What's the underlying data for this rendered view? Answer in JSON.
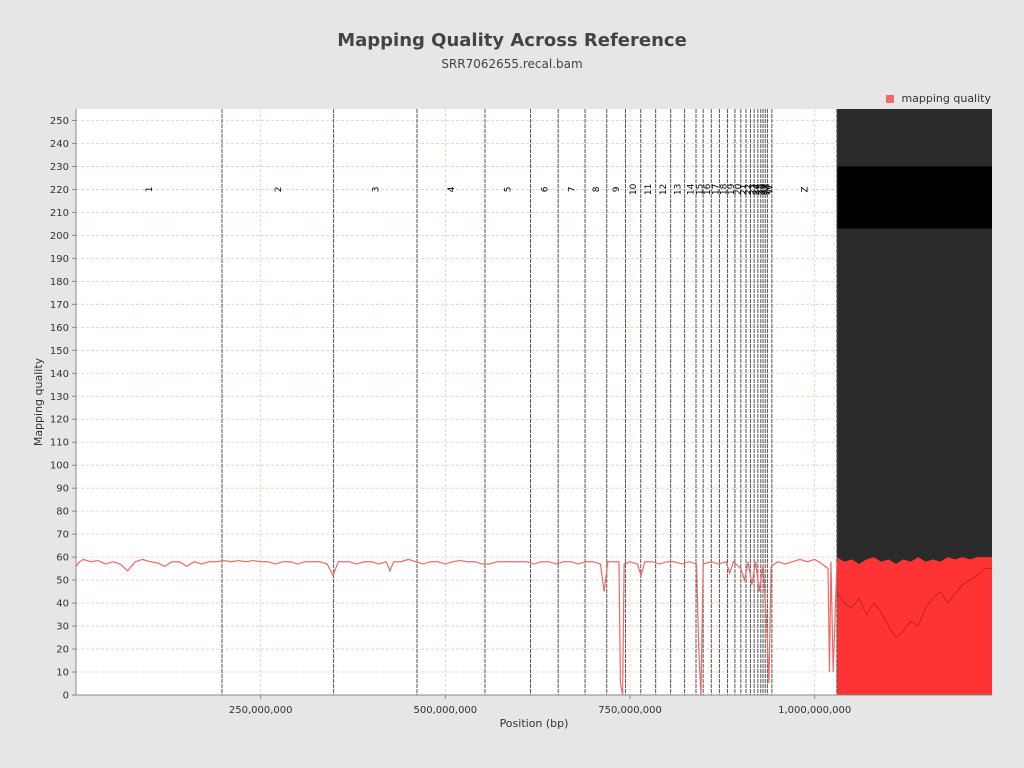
{
  "chart_data": {
    "type": "line",
    "title": "Mapping Quality Across Reference",
    "subtitle": "SRR7062655.recal.bam",
    "xlabel": "Position (bp)",
    "ylabel": "Mapping quality",
    "xlim": [
      0,
      1240000000
    ],
    "ylim": [
      0,
      255
    ],
    "x_ticks": [
      {
        "value": 250000000,
        "label": "250,000,000"
      },
      {
        "value": 500000000,
        "label": "500,000,000"
      },
      {
        "value": 750000000,
        "label": "750,000,000"
      },
      {
        "value": 1000000000,
        "label": "1,000,000,000"
      }
    ],
    "y_ticks": [
      0,
      10,
      20,
      30,
      40,
      50,
      60,
      70,
      80,
      90,
      100,
      110,
      120,
      130,
      140,
      150,
      160,
      170,
      180,
      190,
      200,
      210,
      220,
      230,
      240,
      250
    ],
    "grid": true,
    "legend": {
      "position": "top-right",
      "entries": [
        "mapping quality"
      ]
    },
    "series": [
      {
        "name": "mapping quality",
        "color": "#f26868",
        "points": [
          [
            0,
            56
          ],
          [
            5000000,
            58
          ],
          [
            10000000,
            59
          ],
          [
            20000000,
            58
          ],
          [
            30000000,
            58.5
          ],
          [
            40000000,
            57
          ],
          [
            50000000,
            58
          ],
          [
            60000000,
            57
          ],
          [
            70000000,
            54
          ],
          [
            80000000,
            58
          ],
          [
            90000000,
            59
          ],
          [
            100000000,
            58
          ],
          [
            110000000,
            57.5
          ],
          [
            120000000,
            56
          ],
          [
            130000000,
            58
          ],
          [
            140000000,
            58
          ],
          [
            150000000,
            56
          ],
          [
            160000000,
            58
          ],
          [
            170000000,
            57
          ],
          [
            180000000,
            58
          ],
          [
            190000000,
            58
          ],
          [
            200000000,
            58.5
          ],
          [
            210000000,
            58
          ],
          [
            220000000,
            58.5
          ],
          [
            230000000,
            58
          ],
          [
            240000000,
            58.5
          ],
          [
            250000000,
            58
          ],
          [
            260000000,
            58
          ],
          [
            270000000,
            57
          ],
          [
            280000000,
            58
          ],
          [
            290000000,
            58
          ],
          [
            300000000,
            57
          ],
          [
            310000000,
            58
          ],
          [
            320000000,
            58
          ],
          [
            330000000,
            58
          ],
          [
            340000000,
            57
          ],
          [
            348000000,
            52
          ],
          [
            355000000,
            58
          ],
          [
            370000000,
            58
          ],
          [
            380000000,
            57
          ],
          [
            390000000,
            58
          ],
          [
            400000000,
            58
          ],
          [
            410000000,
            57
          ],
          [
            420000000,
            58
          ],
          [
            425000000,
            54
          ],
          [
            430000000,
            58
          ],
          [
            440000000,
            58
          ],
          [
            450000000,
            59
          ],
          [
            460000000,
            58
          ],
          [
            470000000,
            57
          ],
          [
            480000000,
            58
          ],
          [
            490000000,
            58
          ],
          [
            500000000,
            57
          ],
          [
            510000000,
            58
          ],
          [
            520000000,
            58.5
          ],
          [
            530000000,
            58
          ],
          [
            540000000,
            58
          ],
          [
            550000000,
            57
          ],
          [
            560000000,
            57
          ],
          [
            570000000,
            58
          ],
          [
            580000000,
            58
          ],
          [
            590000000,
            58
          ],
          [
            600000000,
            58
          ],
          [
            610000000,
            58
          ],
          [
            620000000,
            57
          ],
          [
            630000000,
            58
          ],
          [
            640000000,
            58
          ],
          [
            650000000,
            57
          ],
          [
            660000000,
            58
          ],
          [
            670000000,
            58
          ],
          [
            680000000,
            57
          ],
          [
            690000000,
            58
          ],
          [
            700000000,
            58
          ],
          [
            710000000,
            57
          ],
          [
            715000000,
            45
          ],
          [
            720000000,
            58
          ],
          [
            730000000,
            58
          ],
          [
            735000000,
            58
          ],
          [
            737000000,
            5
          ],
          [
            740000000,
            0
          ],
          [
            742000000,
            57
          ],
          [
            750000000,
            58
          ],
          [
            760000000,
            57
          ],
          [
            765000000,
            52
          ],
          [
            770000000,
            58
          ],
          [
            780000000,
            58
          ],
          [
            790000000,
            57
          ],
          [
            800000000,
            58
          ],
          [
            810000000,
            58
          ],
          [
            820000000,
            57
          ],
          [
            830000000,
            58
          ],
          [
            840000000,
            57
          ],
          [
            843000000,
            20
          ],
          [
            846000000,
            0
          ],
          [
            849000000,
            57
          ],
          [
            860000000,
            58
          ],
          [
            870000000,
            57
          ],
          [
            880000000,
            58
          ],
          [
            885000000,
            53
          ],
          [
            890000000,
            58
          ],
          [
            900000000,
            55
          ],
          [
            905000000,
            50
          ],
          [
            910000000,
            58
          ],
          [
            915000000,
            48
          ],
          [
            920000000,
            58
          ],
          [
            925000000,
            45
          ],
          [
            930000000,
            57
          ],
          [
            935000000,
            30
          ],
          [
            938000000,
            5
          ],
          [
            941000000,
            56
          ],
          [
            950000000,
            58
          ],
          [
            960000000,
            57
          ],
          [
            970000000,
            58
          ],
          [
            980000000,
            59
          ],
          [
            990000000,
            58
          ],
          [
            1000000000,
            59
          ],
          [
            1010000000,
            57
          ],
          [
            1018000000,
            55
          ],
          [
            1020000000,
            10
          ],
          [
            1022000000,
            58
          ],
          [
            1025000000,
            10
          ],
          [
            1030000000,
            57
          ]
        ]
      }
    ],
    "dense_region": {
      "x_start": 1030000000,
      "x_end": 1240000000,
      "color": "#ff3333",
      "upper_envelope": [
        [
          1030000000,
          60
        ],
        [
          1040000000,
          58
        ],
        [
          1050000000,
          59
        ],
        [
          1060000000,
          57
        ],
        [
          1070000000,
          59
        ],
        [
          1080000000,
          60
        ],
        [
          1090000000,
          58
        ],
        [
          1100000000,
          59
        ],
        [
          1110000000,
          57
        ],
        [
          1120000000,
          59
        ],
        [
          1130000000,
          58
        ],
        [
          1140000000,
          60
        ],
        [
          1150000000,
          58
        ],
        [
          1160000000,
          59
        ],
        [
          1170000000,
          58
        ],
        [
          1180000000,
          60
        ],
        [
          1190000000,
          59
        ],
        [
          1200000000,
          60
        ],
        [
          1210000000,
          59
        ],
        [
          1220000000,
          60
        ],
        [
          1230000000,
          60
        ],
        [
          1240000000,
          60
        ]
      ],
      "lower_envelope": [
        [
          1030000000,
          45
        ],
        [
          1040000000,
          40
        ],
        [
          1050000000,
          38
        ],
        [
          1060000000,
          42
        ],
        [
          1070000000,
          35
        ],
        [
          1080000000,
          40
        ],
        [
          1090000000,
          36
        ],
        [
          1100000000,
          30
        ],
        [
          1110000000,
          25
        ],
        [
          1120000000,
          28
        ],
        [
          1130000000,
          32
        ],
        [
          1140000000,
          30
        ],
        [
          1150000000,
          38
        ],
        [
          1160000000,
          42
        ],
        [
          1170000000,
          45
        ],
        [
          1180000000,
          40
        ],
        [
          1190000000,
          44
        ],
        [
          1200000000,
          48
        ],
        [
          1210000000,
          50
        ],
        [
          1220000000,
          52
        ],
        [
          1230000000,
          55
        ],
        [
          1240000000,
          55
        ]
      ]
    },
    "chromosomes": [
      {
        "label": "1",
        "start": 0,
        "end": 197600000
      },
      {
        "label": "2",
        "start": 197600000,
        "end": 348700000
      },
      {
        "label": "3",
        "start": 348700000,
        "end": 461600000
      },
      {
        "label": "4",
        "start": 461600000,
        "end": 553600000
      },
      {
        "label": "5",
        "start": 553600000,
        "end": 615300000
      },
      {
        "label": "6",
        "start": 615300000,
        "end": 652700000
      },
      {
        "label": "7",
        "start": 652700000,
        "end": 689100000
      },
      {
        "label": "8",
        "start": 689100000,
        "end": 718500000
      },
      {
        "label": "9",
        "start": 718500000,
        "end": 743800000
      },
      {
        "label": "10",
        "start": 743800000,
        "end": 764500000
      },
      {
        "label": "11",
        "start": 764500000,
        "end": 784700000
      },
      {
        "label": "12",
        "start": 784700000,
        "end": 805000000
      },
      {
        "label": "13",
        "start": 805000000,
        "end": 823900000
      },
      {
        "label": "14",
        "start": 823900000,
        "end": 839300000
      },
      {
        "label": "15",
        "start": 839300000,
        "end": 849000000
      },
      {
        "label": "16",
        "start": 849000000,
        "end": 860000000
      },
      {
        "label": "17",
        "start": 860000000,
        "end": 871000000
      },
      {
        "label": "18",
        "start": 871000000,
        "end": 882000000
      },
      {
        "label": "19",
        "start": 882000000,
        "end": 892000000
      },
      {
        "label": "20",
        "start": 892000000,
        "end": 900000000
      },
      {
        "label": "21",
        "start": 900000000,
        "end": 907000000
      },
      {
        "label": "22",
        "start": 907000000,
        "end": 913000000
      },
      {
        "label": "23",
        "start": 913000000,
        "end": 918000000
      },
      {
        "label": "24",
        "start": 918000000,
        "end": 923000000
      },
      {
        "label": "25",
        "start": 923000000,
        "end": 927000000
      },
      {
        "label": "26",
        "start": 927000000,
        "end": 930000000
      },
      {
        "label": "27",
        "start": 930000000,
        "end": 933000000
      },
      {
        "label": "28",
        "start": 933000000,
        "end": 936000000
      },
      {
        "label": "W",
        "start": 936000000,
        "end": 942000000
      },
      {
        "label": "Z",
        "start": 942000000,
        "end": 1030000000
      }
    ]
  }
}
